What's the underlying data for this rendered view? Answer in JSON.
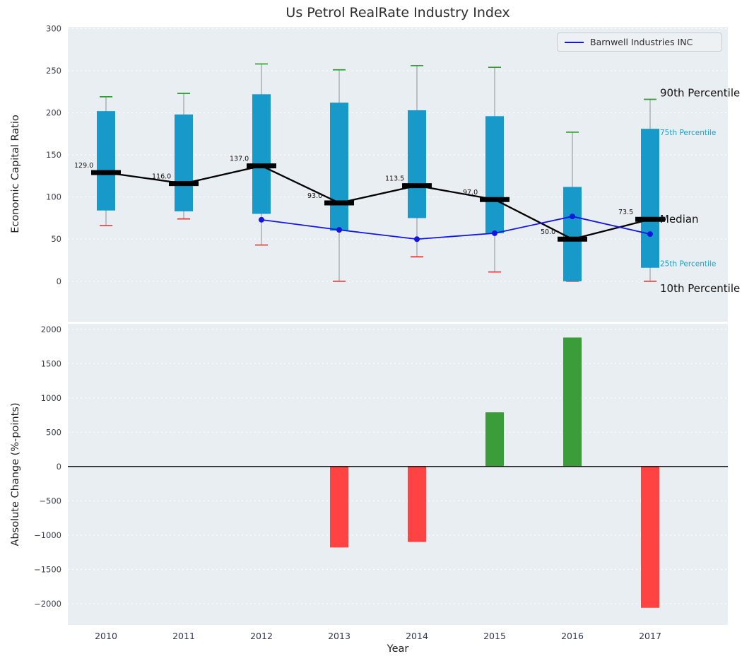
{
  "figure": {
    "title": "Us Petrol RealRate Industry Index",
    "legend": {
      "label": "Barnwell Industries INC"
    },
    "colors": {
      "axes_bg": "#e9eef2",
      "grid": "#ffffff",
      "box_fill": "#1799c9",
      "median": "#000000",
      "whisker": "#9aa0a6",
      "cap_high": "#2ca02c",
      "cap_low": "#e53935",
      "line": "#1515e0",
      "bar_pos": "#3a9d3a",
      "bar_neg": "#ff4343",
      "tick_label": "#3c3c50",
      "x_tick_label": "#333355",
      "annotation_big": "#111111",
      "annotation_small": "#17a0c8"
    }
  },
  "chart_data": [
    {
      "type": "boxplot",
      "title": "Us Petrol RealRate Industry Index",
      "ylabel": "Economic Capital Ratio",
      "ylim": [
        -48,
        302
      ],
      "yticks": [
        0,
        50,
        100,
        150,
        200,
        250,
        300
      ],
      "grid": "horizontal",
      "categories": [
        "2010",
        "2011",
        "2012",
        "2013",
        "2014",
        "2015",
        "2016",
        "2017"
      ],
      "boxes": [
        {
          "year": "2010",
          "p10": 66,
          "p25": 84,
          "median": 129.0,
          "p75": 202,
          "p90": 219
        },
        {
          "year": "2011",
          "p10": 74,
          "p25": 83,
          "median": 116.0,
          "p75": 198,
          "p90": 223
        },
        {
          "year": "2012",
          "p10": 43,
          "p25": 80,
          "median": 137.0,
          "p75": 222,
          "p90": 258
        },
        {
          "year": "2013",
          "p10": 0,
          "p25": 60,
          "median": 93.0,
          "p75": 212,
          "p90": 251
        },
        {
          "year": "2014",
          "p10": 29,
          "p25": 75,
          "median": 113.5,
          "p75": 203,
          "p90": 256
        },
        {
          "year": "2015",
          "p10": 11,
          "p25": 57,
          "median": 97.0,
          "p75": 196,
          "p90": 254
        },
        {
          "year": "2016",
          "p10": 0,
          "p25": 0,
          "median": 50.0,
          "p75": 112,
          "p90": 177
        },
        {
          "year": "2017",
          "p10": 0,
          "p25": 16,
          "median": 73.5,
          "p75": 181,
          "p90": 216
        }
      ],
      "median_labels": [
        "129.0",
        "116.0",
        "137.0",
        "93.0",
        "113.5",
        "97.0",
        "50.0",
        "73.5"
      ],
      "series": {
        "name": "Barnwell Industries INC",
        "x": [
          "2012",
          "2013",
          "2014",
          "2015",
          "2016",
          "2017"
        ],
        "values": [
          73,
          61,
          50,
          57,
          77,
          56
        ]
      },
      "legend_position": "upper right",
      "annotations": [
        {
          "label": "90th Percentile",
          "anchor": "p90",
          "style": "big"
        },
        {
          "label": "75th Percentile",
          "anchor": "p75",
          "style": "small"
        },
        {
          "label": "Median",
          "anchor": "median",
          "style": "big"
        },
        {
          "label": "25th Percentile",
          "anchor": "p25",
          "style": "small"
        },
        {
          "label": "10th Percentile",
          "anchor": "p10",
          "style": "big"
        }
      ]
    },
    {
      "type": "bar",
      "ylabel": "Absolute Change (%-points)",
      "xlabel": "Year",
      "ylim": [
        -2310,
        2080
      ],
      "yticks": [
        -2000,
        -1500,
        -1000,
        -500,
        0,
        500,
        1000,
        1500,
        2000
      ],
      "grid": "horizontal",
      "categories": [
        "2010",
        "2011",
        "2012",
        "2013",
        "2014",
        "2015",
        "2016",
        "2017"
      ],
      "values": [
        null,
        null,
        null,
        -1180,
        -1100,
        790,
        1880,
        -2060
      ],
      "zero_line": true
    }
  ]
}
